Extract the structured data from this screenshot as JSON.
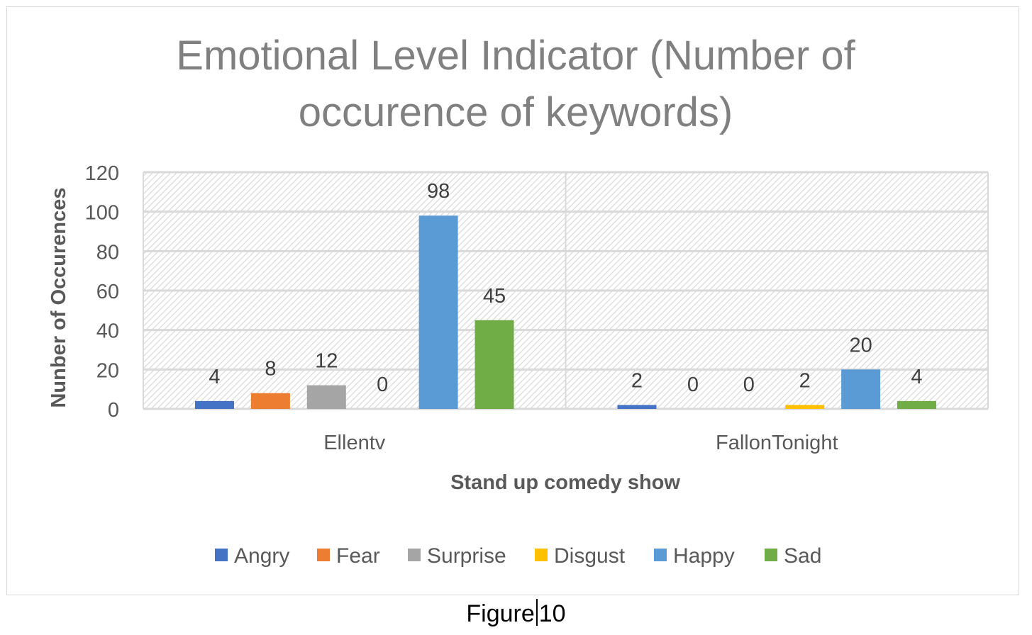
{
  "chart_data": {
    "type": "bar",
    "title": "Emotional Level Indicator (Number of occurence of keywords)",
    "title_lines": [
      "Emotional Level Indicator (Number of",
      "occurence of keywords)"
    ],
    "xlabel": "Stand up comedy show",
    "ylabel": "Nunber of Occurences",
    "categories": [
      "Ellentv",
      "FallonTonight"
    ],
    "ylim": [
      0,
      120
    ],
    "yticks": [
      0,
      20,
      40,
      60,
      80,
      100,
      120
    ],
    "grid": true,
    "legend_position": "bottom",
    "series": [
      {
        "name": "Angry",
        "color": "#4472C4",
        "values": [
          4,
          2
        ]
      },
      {
        "name": "Fear",
        "color": "#ED7D31",
        "values": [
          8,
          0
        ]
      },
      {
        "name": "Surprise",
        "color": "#A5A5A5",
        "values": [
          12,
          0
        ]
      },
      {
        "name": "Disgust",
        "color": "#FFC000",
        "values": [
          0,
          2
        ]
      },
      {
        "name": "Happy",
        "color": "#5B9BD5",
        "values": [
          98,
          20
        ]
      },
      {
        "name": "Sad",
        "color": "#70AD47",
        "values": [
          45,
          4
        ]
      }
    ]
  },
  "caption": {
    "left": "Figure",
    "right": "10"
  }
}
